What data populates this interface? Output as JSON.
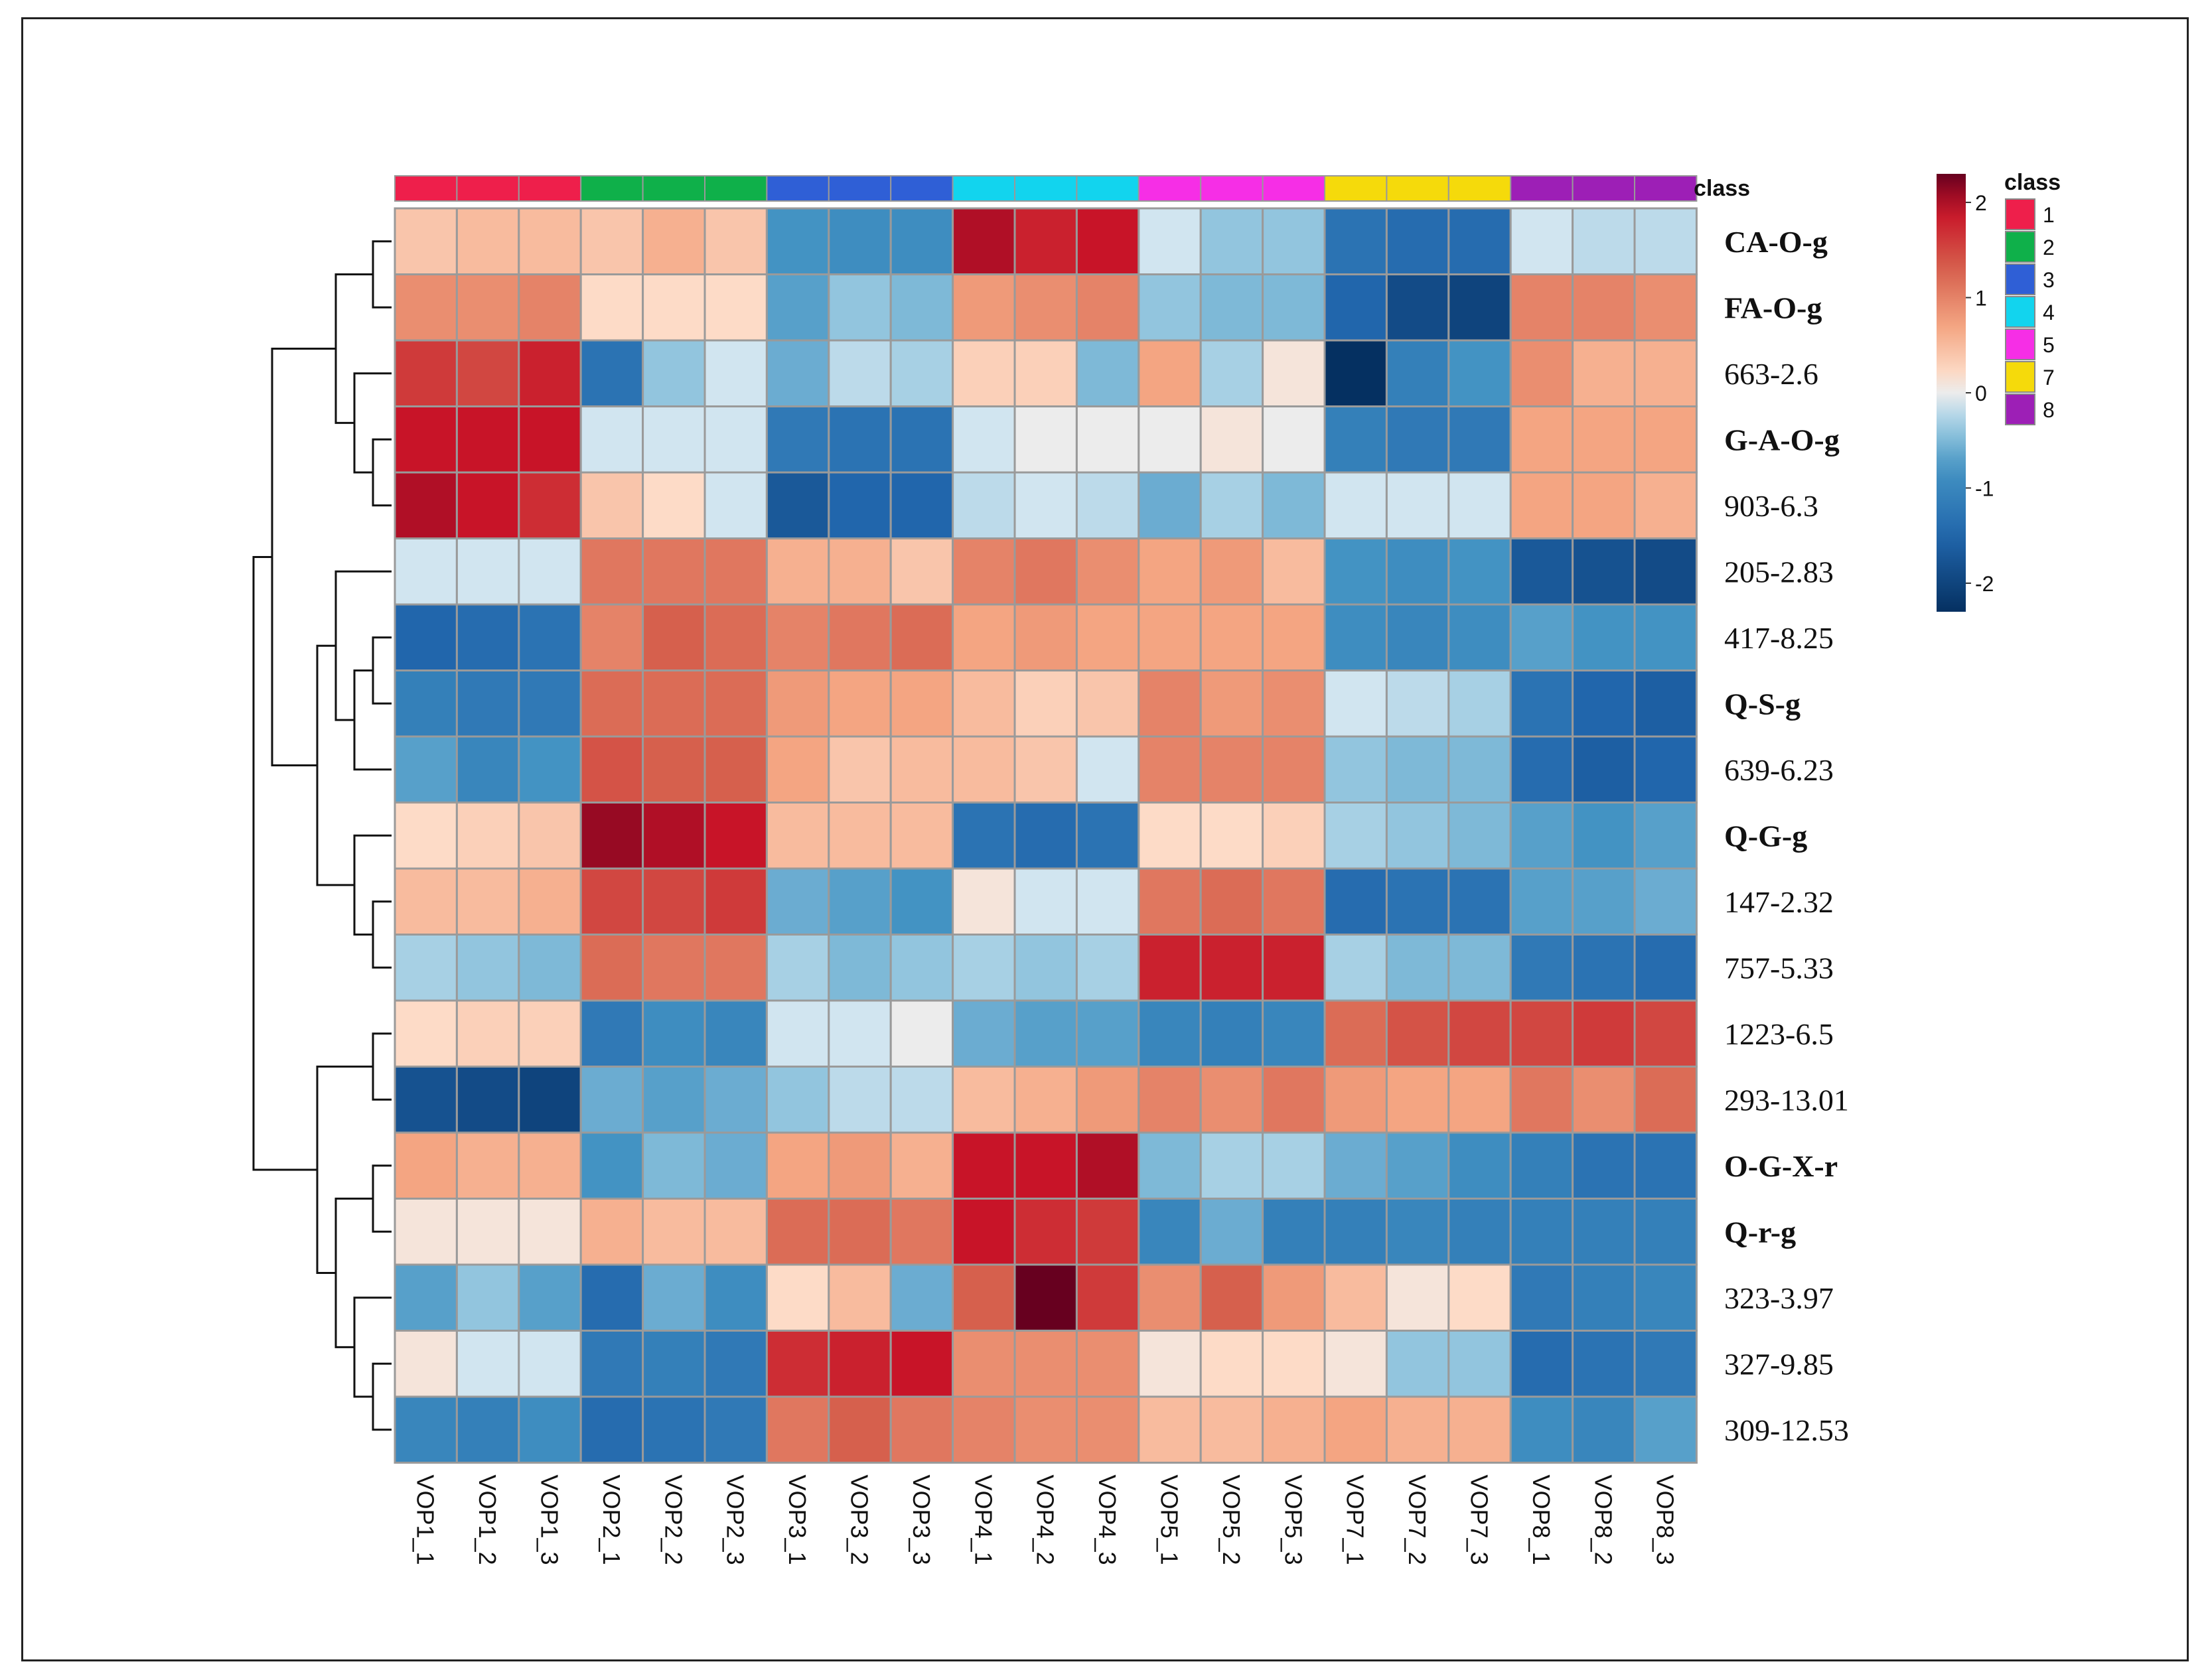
{
  "chart_data": {
    "type": "heatmap",
    "title": "",
    "class_bar_label": "class",
    "colorbar": {
      "title": "class",
      "ticks": [
        "2",
        "1",
        "0",
        "-1",
        "-2"
      ],
      "range": [
        -2.3,
        2.3
      ]
    },
    "legend": {
      "title": "class",
      "entries": [
        {
          "label": "1",
          "color": "#ee1f4b"
        },
        {
          "label": "2",
          "color": "#0fb04a"
        },
        {
          "label": "3",
          "color": "#2f5fd6"
        },
        {
          "label": "4",
          "color": "#12d4ee"
        },
        {
          "label": "5",
          "color": "#f62ee6"
        },
        {
          "label": "7",
          "color": "#f5da0b"
        },
        {
          "label": "8",
          "color": "#9d1fb6"
        }
      ]
    },
    "columns": [
      "VOP1_1",
      "VOP1_2",
      "VOP1_3",
      "VOP2_1",
      "VOP2_2",
      "VOP2_3",
      "VOP3_1",
      "VOP3_2",
      "VOP3_3",
      "VOP4_1",
      "VOP4_2",
      "VOP4_3",
      "VOP5_1",
      "VOP5_2",
      "VOP5_3",
      "VOP7_1",
      "VOP7_2",
      "VOP7_3",
      "VOP8_1",
      "VOP8_2",
      "VOP8_3"
    ],
    "column_classes": [
      "1",
      "1",
      "1",
      "2",
      "2",
      "2",
      "3",
      "3",
      "3",
      "4",
      "4",
      "4",
      "5",
      "5",
      "5",
      "7",
      "7",
      "7",
      "8",
      "8",
      "8"
    ],
    "rows": [
      "CA-O-g",
      "FA-O-g",
      "663-2.6",
      "G-A-O-g",
      "903-6.3",
      "205-2.83",
      "417-8.25",
      "Q-S-g",
      "639-6.23",
      "Q-G-g",
      "147-2.32",
      "757-5.33",
      "1223-6.5",
      "293-13.01",
      "O-G-X-r",
      "Q-r-g",
      "323-3.97",
      "327-9.85",
      "309-12.53"
    ],
    "bold_rows": [
      "CA-O-g",
      "FA-O-g",
      "G-A-O-g",
      "Q-S-g",
      "Q-G-g",
      "O-G-X-r",
      "Q-r-g"
    ],
    "values": [
      [
        0.4,
        0.5,
        0.5,
        0.4,
        0.6,
        0.4,
        -0.8,
        -0.9,
        -0.9,
        2.0,
        1.8,
        1.9,
        -0.1,
        -0.4,
        -0.4,
        -1.3,
        -1.4,
        -1.4,
        -0.1,
        -0.2,
        -0.2
      ],
      [
        0.9,
        0.9,
        1.0,
        0.2,
        0.2,
        0.2,
        -0.7,
        -0.4,
        -0.5,
        0.8,
        0.9,
        1.0,
        -0.4,
        -0.5,
        -0.5,
        -1.5,
        -1.9,
        -2.0,
        1.0,
        1.0,
        0.9
      ],
      [
        1.6,
        1.5,
        1.8,
        -1.3,
        -0.4,
        -0.1,
        -0.6,
        -0.2,
        -0.3,
        0.3,
        0.3,
        -0.5,
        0.7,
        -0.3,
        0.1,
        -2.3,
        -1.1,
        -0.8,
        0.9,
        0.6,
        0.6
      ],
      [
        1.9,
        1.9,
        1.9,
        -0.1,
        -0.1,
        -0.1,
        -1.2,
        -1.3,
        -1.3,
        -0.1,
        0.0,
        0.0,
        0.0,
        0.1,
        0.0,
        -1.1,
        -1.2,
        -1.2,
        0.7,
        0.7,
        0.7
      ],
      [
        2.0,
        1.9,
        1.7,
        0.4,
        0.2,
        -0.1,
        -1.7,
        -1.5,
        -1.5,
        -0.2,
        -0.1,
        -0.2,
        -0.6,
        -0.3,
        -0.5,
        -0.1,
        -0.1,
        -0.1,
        0.7,
        0.7,
        0.6
      ],
      [
        -0.1,
        -0.1,
        -0.1,
        1.1,
        1.1,
        1.1,
        0.6,
        0.6,
        0.4,
        1.0,
        1.1,
        0.9,
        0.7,
        0.8,
        0.5,
        -0.8,
        -0.9,
        -0.8,
        -1.7,
        -1.8,
        -1.9
      ],
      [
        -1.5,
        -1.4,
        -1.3,
        1.0,
        1.3,
        1.2,
        1.0,
        1.1,
        1.2,
        0.7,
        0.8,
        0.7,
        0.7,
        0.7,
        0.7,
        -0.9,
        -1.0,
        -0.9,
        -0.7,
        -0.8,
        -0.8
      ],
      [
        -1.1,
        -1.2,
        -1.2,
        1.2,
        1.2,
        1.2,
        0.8,
        0.7,
        0.7,
        0.5,
        0.3,
        0.4,
        1.0,
        0.8,
        0.9,
        -0.1,
        -0.2,
        -0.3,
        -1.3,
        -1.5,
        -1.6
      ],
      [
        -0.7,
        -1.0,
        -0.8,
        1.4,
        1.3,
        1.3,
        0.7,
        0.4,
        0.5,
        0.5,
        0.4,
        -0.1,
        1.0,
        1.0,
        1.0,
        -0.4,
        -0.5,
        -0.5,
        -1.4,
        -1.6,
        -1.5
      ],
      [
        0.2,
        0.3,
        0.4,
        2.1,
        2.0,
        1.9,
        0.5,
        0.5,
        0.5,
        -1.3,
        -1.4,
        -1.3,
        0.2,
        0.2,
        0.3,
        -0.3,
        -0.4,
        -0.5,
        -0.7,
        -0.8,
        -0.7
      ],
      [
        0.5,
        0.5,
        0.6,
        1.5,
        1.5,
        1.6,
        -0.6,
        -0.7,
        -0.8,
        0.1,
        -0.1,
        -0.1,
        1.1,
        1.2,
        1.1,
        -1.4,
        -1.3,
        -1.3,
        -0.7,
        -0.7,
        -0.6
      ],
      [
        -0.3,
        -0.4,
        -0.5,
        1.2,
        1.1,
        1.1,
        -0.3,
        -0.5,
        -0.4,
        -0.3,
        -0.4,
        -0.3,
        1.8,
        1.8,
        1.8,
        -0.3,
        -0.5,
        -0.5,
        -1.2,
        -1.3,
        -1.4
      ],
      [
        0.2,
        0.3,
        0.3,
        -1.2,
        -0.9,
        -1.0,
        -0.1,
        -0.1,
        0.0,
        -0.6,
        -0.7,
        -0.7,
        -1.0,
        -1.1,
        -1.0,
        1.2,
        1.4,
        1.5,
        1.5,
        1.6,
        1.5
      ],
      [
        -1.8,
        -1.9,
        -2.0,
        -0.6,
        -0.7,
        -0.6,
        -0.4,
        -0.2,
        -0.2,
        0.5,
        0.6,
        0.8,
        1.0,
        0.9,
        1.1,
        0.8,
        0.7,
        0.7,
        1.1,
        0.9,
        1.2
      ],
      [
        0.7,
        0.6,
        0.6,
        -0.8,
        -0.5,
        -0.6,
        0.7,
        0.8,
        0.6,
        1.9,
        1.9,
        2.0,
        -0.5,
        -0.3,
        -0.3,
        -0.6,
        -0.7,
        -0.9,
        -1.1,
        -1.3,
        -1.3
      ],
      [
        0.1,
        0.1,
        0.1,
        0.6,
        0.5,
        0.5,
        1.2,
        1.2,
        1.1,
        1.9,
        1.7,
        1.6,
        -1.0,
        -0.6,
        -1.1,
        -1.1,
        -1.0,
        -1.1,
        -1.1,
        -1.1,
        -1.1
      ],
      [
        -0.7,
        -0.4,
        -0.7,
        -1.4,
        -0.6,
        -0.9,
        0.2,
        0.5,
        -0.6,
        1.3,
        2.3,
        1.6,
        0.9,
        1.3,
        0.8,
        0.5,
        0.1,
        0.2,
        -1.2,
        -1.1,
        -1.0
      ],
      [
        0.1,
        -0.1,
        -0.1,
        -1.2,
        -1.1,
        -1.2,
        1.7,
        1.8,
        1.9,
        0.9,
        0.9,
        0.9,
        0.1,
        0.2,
        0.2,
        0.1,
        -0.4,
        -0.4,
        -1.4,
        -1.3,
        -1.2
      ],
      [
        -1.0,
        -1.1,
        -0.9,
        -1.4,
        -1.3,
        -1.2,
        1.1,
        1.3,
        1.1,
        1.0,
        0.9,
        0.9,
        0.5,
        0.5,
        0.6,
        0.7,
        0.6,
        0.6,
        -0.9,
        -1.0,
        -0.7
      ]
    ]
  }
}
